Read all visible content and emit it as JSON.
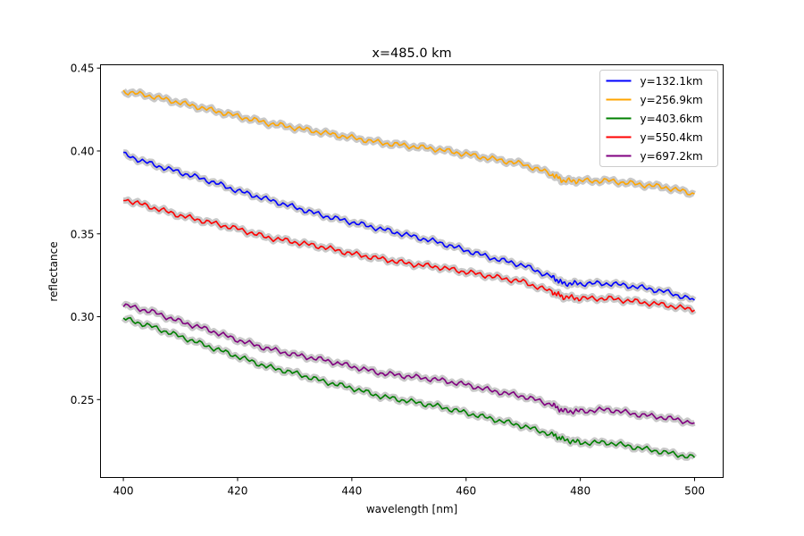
{
  "chart_data": {
    "type": "line",
    "title": "x=485.0 km",
    "xlabel": "wavelength [nm]",
    "ylabel": "reflectance",
    "xlim": [
      396,
      505
    ],
    "ylim": [
      0.203,
      0.452
    ],
    "xticks": [
      400,
      420,
      440,
      460,
      480,
      500
    ],
    "xtick_labels": [
      "400",
      "420",
      "440",
      "460",
      "480",
      "500"
    ],
    "yticks": [
      0.25,
      0.3,
      0.35,
      0.4,
      0.45
    ],
    "ytick_labels": [
      "0.25",
      "0.30",
      "0.35",
      "0.40",
      "0.45"
    ],
    "grid": false,
    "legend_position": "top-right",
    "band_color": "#c8c8c8",
    "x": [
      400,
      405,
      410,
      415,
      420,
      425,
      430,
      435,
      440,
      445,
      450,
      455,
      460,
      465,
      470,
      475,
      477,
      480,
      485,
      490,
      495,
      500
    ],
    "series": [
      {
        "name": "y=132.1km",
        "color": "#0000ff",
        "values": [
          0.398,
          0.392,
          0.387,
          0.382,
          0.376,
          0.371,
          0.366,
          0.361,
          0.357,
          0.353,
          0.349,
          0.345,
          0.34,
          0.335,
          0.331,
          0.324,
          0.32,
          0.32,
          0.32,
          0.318,
          0.315,
          0.31
        ]
      },
      {
        "name": "y=256.9km",
        "color": "#ffa500",
        "values": [
          0.436,
          0.433,
          0.429,
          0.425,
          0.421,
          0.417,
          0.414,
          0.411,
          0.408,
          0.405,
          0.403,
          0.401,
          0.398,
          0.395,
          0.392,
          0.386,
          0.382,
          0.382,
          0.382,
          0.38,
          0.378,
          0.374
        ]
      },
      {
        "name": "y=403.6km",
        "color": "#008000",
        "values": [
          0.299,
          0.294,
          0.288,
          0.282,
          0.276,
          0.27,
          0.266,
          0.261,
          0.257,
          0.252,
          0.249,
          0.246,
          0.242,
          0.238,
          0.234,
          0.229,
          0.226,
          0.224,
          0.224,
          0.221,
          0.218,
          0.215
        ]
      },
      {
        "name": "y=550.4km",
        "color": "#ff0000",
        "values": [
          0.371,
          0.366,
          0.361,
          0.357,
          0.353,
          0.348,
          0.345,
          0.342,
          0.338,
          0.335,
          0.332,
          0.33,
          0.327,
          0.324,
          0.321,
          0.315,
          0.312,
          0.311,
          0.311,
          0.309,
          0.307,
          0.304
        ]
      },
      {
        "name": "y=697.2km",
        "color": "#800080",
        "values": [
          0.307,
          0.303,
          0.297,
          0.292,
          0.286,
          0.281,
          0.277,
          0.274,
          0.27,
          0.266,
          0.264,
          0.262,
          0.259,
          0.255,
          0.252,
          0.247,
          0.243,
          0.243,
          0.244,
          0.241,
          0.239,
          0.236
        ]
      }
    ]
  }
}
